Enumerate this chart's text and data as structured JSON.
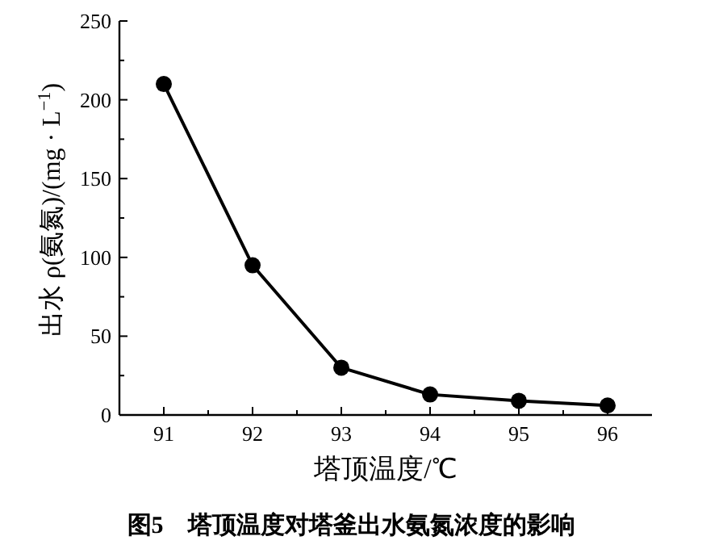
{
  "chart_data": {
    "type": "line",
    "xlabel": "塔顶温度/℃",
    "ylabel": "出水 ρ(氨氮)/(mg · L$^{−1}$)",
    "annotations": [
      "图5　塔顶温度对塔釜出水氨氮浓度的影响"
    ],
    "x": [
      91,
      92,
      93,
      94,
      95,
      96
    ],
    "series": [
      {
        "color": "#000000",
        "values": [
          210,
          95,
          30,
          13,
          9,
          6
        ]
      }
    ],
    "xlim": [
      90.5,
      96.5
    ],
    "xticks": [
      91,
      92,
      93,
      94,
      95,
      96
    ],
    "ylim": [
      0,
      250
    ],
    "yticks": [
      0,
      50,
      100,
      150,
      200,
      250
    ],
    "marker": "circle",
    "line_style": "solid"
  }
}
